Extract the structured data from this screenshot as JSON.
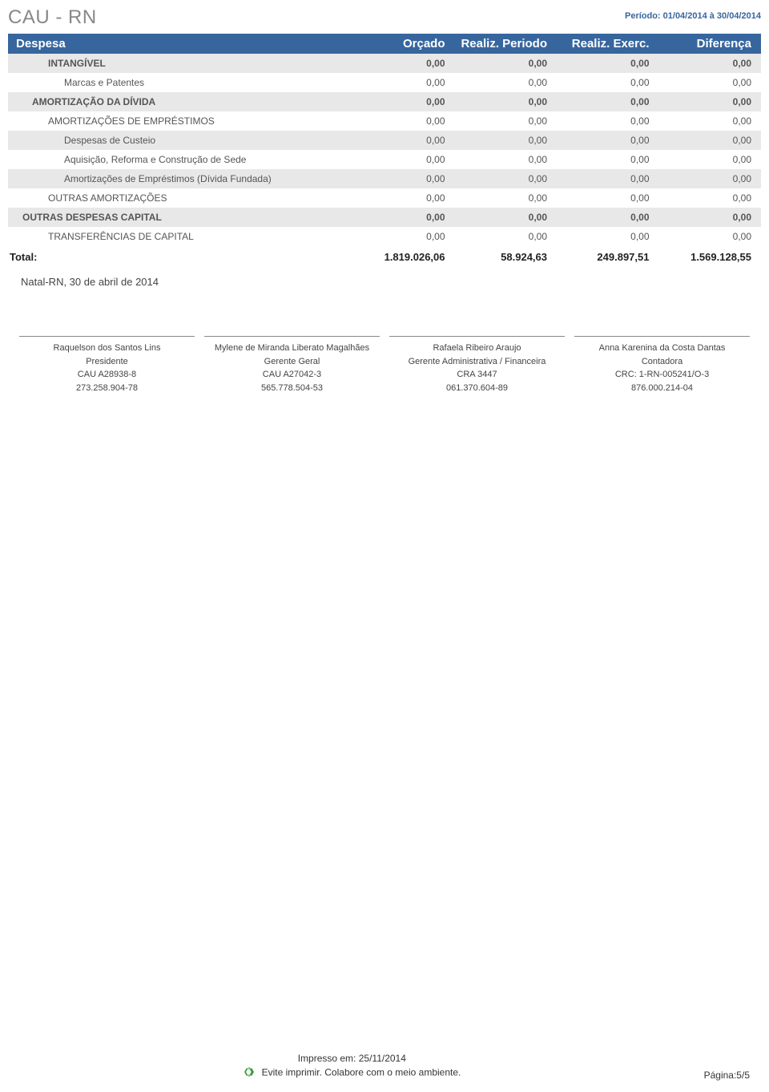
{
  "header": {
    "title": "CAU - RN",
    "periodo": "Período: 01/04/2014 à 30/04/2014"
  },
  "columns": [
    "Despesa",
    "Orçado",
    "Realiz. Periodo",
    "Realiz. Exerc.",
    "Diferença"
  ],
  "rows": [
    {
      "cls": "lvl1",
      "label": "INTANGÍVEL",
      "v": [
        "0,00",
        "0,00",
        "0,00",
        "0,00"
      ]
    },
    {
      "cls": "lvl2",
      "label": "Marcas e Patentes",
      "v": [
        "0,00",
        "0,00",
        "0,00",
        "0,00"
      ]
    },
    {
      "cls": "lvl0b",
      "label": "AMORTIZAÇÃO DA DÍVIDA",
      "v": [
        "0,00",
        "0,00",
        "0,00",
        "0,00"
      ]
    },
    {
      "cls": "lvl1b",
      "label": "AMORTIZAÇÕES DE EMPRÉSTIMOS",
      "v": [
        "0,00",
        "0,00",
        "0,00",
        "0,00"
      ]
    },
    {
      "cls": "lvl2b",
      "label": "Despesas de Custeio",
      "v": [
        "0,00",
        "0,00",
        "0,00",
        "0,00"
      ]
    },
    {
      "cls": "lvl2",
      "label": "Aquisição, Reforma e Construção de Sede",
      "v": [
        "0,00",
        "0,00",
        "0,00",
        "0,00"
      ]
    },
    {
      "cls": "lvl2b",
      "label": "Amortizações de Empréstimos (Dívida Fundada)",
      "v": [
        "0,00",
        "0,00",
        "0,00",
        "0,00"
      ]
    },
    {
      "cls": "lvl1b",
      "label": "OUTRAS AMORTIZAÇÕES",
      "v": [
        "0,00",
        "0,00",
        "0,00",
        "0,00"
      ]
    },
    {
      "cls": "lvl00",
      "label": "OUTRAS DESPESAS CAPITAL",
      "v": [
        "0,00",
        "0,00",
        "0,00",
        "0,00"
      ]
    },
    {
      "cls": "lvl1b",
      "label": "TRANSFERÊNCIAS DE CAPITAL",
      "v": [
        "0,00",
        "0,00",
        "0,00",
        "0,00"
      ]
    }
  ],
  "total": {
    "label": "Total:",
    "v": [
      "1.819.026,06",
      "58.924,63",
      "249.897,51",
      "1.569.128,55"
    ]
  },
  "dateline": "Natal-RN, 30 de abril de 2014",
  "signatures": [
    {
      "name": "Raquelson dos Santos Lins",
      "role": "Presidente",
      "reg": "CAU A28938-8",
      "doc": "273.258.904-78"
    },
    {
      "name": "Mylene de Miranda Liberato Magalhães",
      "role": "Gerente Geral",
      "reg": "CAU A27042-3",
      "doc": "565.778.504-53"
    },
    {
      "name": "Rafaela Ribeiro Araujo",
      "role": "Gerente Administrativa / Financeira",
      "reg": "CRA 3447",
      "doc": "061.370.604-89"
    },
    {
      "name": "Anna Karenina da Costa Dantas",
      "role": "Contadora",
      "reg": "CRC: 1-RN-005241/O-3",
      "doc": "876.000.214-04"
    }
  ],
  "footer": {
    "printed": "Impresso em: 25/11/2014",
    "eco": "Evite imprimir. Colabore com o meio ambiente.",
    "page": "Página:5/5"
  },
  "colors": {
    "header_bg": "#37669e",
    "header_text": "#ffffff",
    "alt_row": "#e8e8e8",
    "title_color": "#888888"
  }
}
